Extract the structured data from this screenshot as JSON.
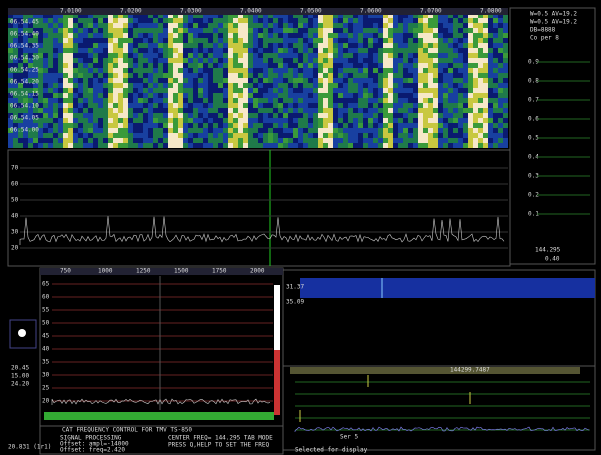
{
  "waterfall": {
    "freq_labels": [
      "7.0100",
      "7.0200",
      "7.0300",
      "7.0400",
      "7.0500",
      "7.0600",
      "7.0700",
      "7.0800"
    ],
    "time_labels": [
      "06.54.45",
      "06.54.40",
      "06.54.35",
      "06.54.30",
      "06.54.25",
      "06.54.20",
      "06.54.15",
      "06.54.10",
      "06.54.05",
      "06.54.00"
    ]
  },
  "spectrum": {
    "level_labels": [
      "70",
      "60",
      "50",
      "40",
      "30",
      "20"
    ]
  },
  "right_panel": {
    "lines": [
      "W=0.5 AV=19.2",
      "W=0.5 AV=19.2",
      "DB=8888",
      "Co per 8"
    ],
    "scale_labels": [
      "0.9",
      "0.8",
      "0.7",
      "0.6",
      "0.5",
      "0.4",
      "0.3",
      "0.2",
      "0.1"
    ],
    "freq": "144.295",
    "gain": "0.40"
  },
  "baseband": {
    "freq_labels": [
      "750",
      "1000",
      "1250",
      "1500",
      "1750",
      "2000"
    ],
    "level_labels": [
      "65",
      "60",
      "55",
      "50",
      "45",
      "40",
      "35",
      "30",
      "25",
      "20"
    ],
    "side_labels": [
      "20.45",
      "15.00",
      "24.20"
    ]
  },
  "status": {
    "title": "CAT FREQUENCY CONTROL FOR TMV TS-850",
    "lines": [
      "SIGNAL PROCESSING",
      "Offset: ampl=-14000",
      "Offset: freq=2.420"
    ],
    "freq_lines": [
      "CENTER FREQ= 144.295 TAB MODE",
      "PRESS Q,HELP TO SET THE FREQ"
    ],
    "clock": "20.831 (1r1)"
  },
  "meteor": {
    "header": "Selected for display",
    "freq": "144299.7487",
    "mode": "Ser 5",
    "time": "31.37",
    "time2": "35.09"
  }
}
